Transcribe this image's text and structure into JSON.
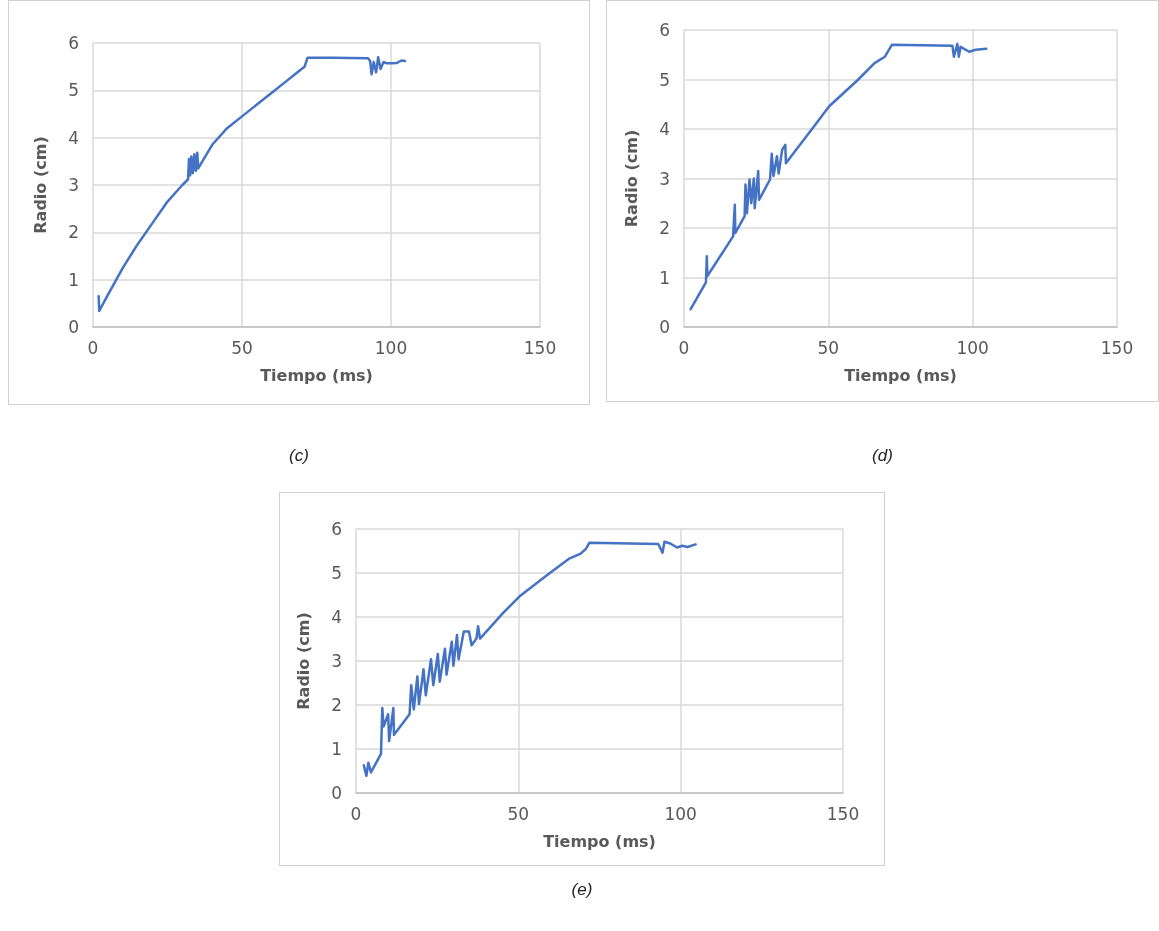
{
  "chart_data": [
    {
      "type": "line",
      "xlabel": "Tiempo (ms)",
      "ylabel": "Radio (cm)",
      "annotations": [
        "(c)"
      ],
      "xlim": [
        0,
        150
      ],
      "xticks": [
        0,
        50,
        100,
        150
      ],
      "ylim": [
        0,
        6
      ],
      "yticks": [
        0,
        1,
        2,
        3,
        4,
        5,
        6
      ],
      "grid": true,
      "marker": "none",
      "line_style": "solid",
      "series": [
        {
          "color": "#4472c4",
          "x": [
            1.9,
            2.1,
            5,
            10,
            15,
            20,
            25,
            30,
            31.9,
            32.2,
            32.6,
            33,
            33.5,
            34,
            34.5,
            35,
            35.3,
            40,
            45,
            50,
            55,
            60,
            65,
            68,
            70,
            71,
            72,
            80,
            92.3,
            93,
            93.5,
            94.2,
            95,
            95.7,
            96.5,
            97.5,
            98.5,
            100,
            102,
            103.5,
            104.7
          ],
          "values": [
            0.65,
            0.34,
            0.68,
            1.25,
            1.75,
            2.2,
            2.65,
            3.0,
            3.12,
            3.55,
            3.2,
            3.6,
            3.25,
            3.65,
            3.3,
            3.68,
            3.35,
            3.85,
            4.2,
            4.45,
            4.7,
            4.95,
            5.2,
            5.35,
            5.45,
            5.5,
            5.69,
            5.69,
            5.68,
            5.62,
            5.34,
            5.6,
            5.38,
            5.7,
            5.45,
            5.6,
            5.57,
            5.57,
            5.58,
            5.63,
            5.62
          ]
        }
      ]
    },
    {
      "type": "line",
      "xlabel": "Tiempo (ms)",
      "ylabel": "Radio (cm)",
      "annotations": [
        "(d)"
      ],
      "xlim": [
        0,
        150
      ],
      "xticks": [
        0,
        50,
        100,
        150
      ],
      "ylim": [
        0,
        6
      ],
      "yticks": [
        0,
        1,
        2,
        3,
        4,
        5,
        6
      ],
      "grid": true,
      "marker": "none",
      "line_style": "solid",
      "series": [
        {
          "color": "#4472c4",
          "x": [
            2.3,
            7.6,
            7.9,
            8.1,
            17,
            17.6,
            17.8,
            21,
            21.3,
            21.8,
            22.7,
            23.3,
            24.2,
            24.5,
            25.7,
            26,
            29.8,
            30.4,
            31,
            32.2,
            32.8,
            34,
            35.1,
            35.3,
            45,
            50.3,
            60.2,
            66,
            69.6,
            72,
            93,
            93.5,
            94.7,
            95.2,
            95.8,
            98.8,
            101,
            104.7
          ],
          "values": [
            0.36,
            0.9,
            1.43,
            1.03,
            1.83,
            2.47,
            1.9,
            2.24,
            2.88,
            2.3,
            2.98,
            2.5,
            3.0,
            2.4,
            3.15,
            2.57,
            2.98,
            3.5,
            3.05,
            3.45,
            3.1,
            3.58,
            3.68,
            3.31,
            4.05,
            4.46,
            4.99,
            5.33,
            5.46,
            5.7,
            5.68,
            5.46,
            5.72,
            5.46,
            5.66,
            5.56,
            5.6,
            5.62
          ]
        }
      ]
    },
    {
      "type": "line",
      "xlabel": "Tiempo (ms)",
      "ylabel": "Radio (cm)",
      "annotations": [
        "(e)"
      ],
      "xlim": [
        0,
        150
      ],
      "xticks": [
        0,
        50,
        100,
        150
      ],
      "ylim": [
        0,
        6
      ],
      "yticks": [
        0,
        1,
        2,
        3,
        4,
        5,
        6
      ],
      "grid": true,
      "marker": "none",
      "line_style": "solid",
      "series": [
        {
          "color": "#4472c4",
          "x": [
            2.4,
            3.2,
            3.8,
            4.6,
            7.7,
            8.1,
            8.5,
            9.9,
            10.2,
            11.5,
            11.7,
            12,
            16.5,
            17,
            17.8,
            18.9,
            19.4,
            20.8,
            21.5,
            23.1,
            23.8,
            25.2,
            25.8,
            27.4,
            27.9,
            29.5,
            30,
            31.1,
            31.6,
            33.2,
            34.8,
            35.6,
            37.1,
            37.6,
            38.2,
            45.4,
            50.7,
            59,
            65.5,
            69.2,
            70.8,
            71.9,
            93.1,
            94.4,
            95,
            96.8,
            98.9,
            100.5,
            102.1,
            104.6
          ],
          "values": [
            0.63,
            0.39,
            0.69,
            0.47,
            0.89,
            1.93,
            1.51,
            1.79,
            1.18,
            1.93,
            1.32,
            1.35,
            1.79,
            2.45,
            1.9,
            2.65,
            2.02,
            2.81,
            2.22,
            3.04,
            2.45,
            3.16,
            2.53,
            3.28,
            2.69,
            3.44,
            2.89,
            3.59,
            3.04,
            3.67,
            3.67,
            3.36,
            3.51,
            3.79,
            3.51,
            4.1,
            4.49,
            4.96,
            5.32,
            5.44,
            5.55,
            5.69,
            5.66,
            5.46,
            5.71,
            5.67,
            5.58,
            5.62,
            5.59,
            5.65
          ]
        }
      ]
    }
  ]
}
